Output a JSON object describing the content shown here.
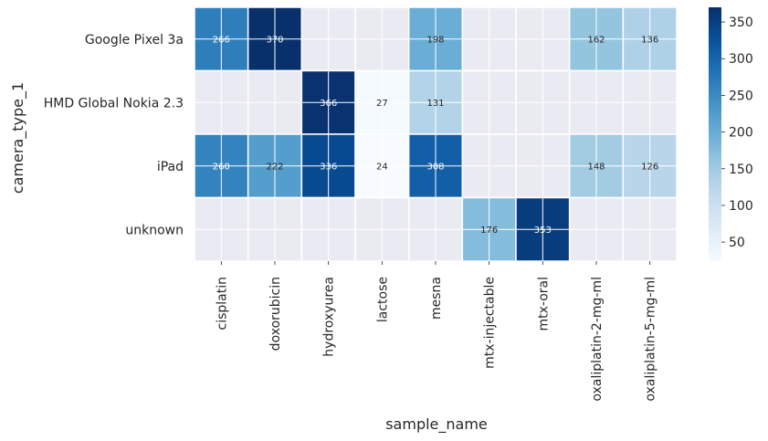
{
  "chart_data": {
    "type": "heatmap",
    "xlabel": "sample_name",
    "ylabel": "camera_type_1",
    "x_categories": [
      "cisplatin",
      "doxorubicin",
      "hydroxyurea",
      "lactose",
      "mesna",
      "mtx-injectable",
      "mtx-oral",
      "oxaliplatin-2-mg-ml",
      "oxaliplatin-5-mg-ml"
    ],
    "y_categories": [
      "Google Pixel 3a",
      "HMD Global Nokia 2.3",
      "iPad",
      "unknown"
    ],
    "values": [
      [
        266,
        370,
        null,
        null,
        198,
        null,
        null,
        162,
        136
      ],
      [
        null,
        null,
        366,
        27,
        131,
        null,
        null,
        null,
        null
      ],
      [
        260,
        222,
        336,
        24,
        308,
        null,
        null,
        148,
        126
      ],
      [
        null,
        null,
        null,
        null,
        null,
        176,
        353,
        null,
        null
      ]
    ],
    "colormap": "Blues",
    "vmin": 24,
    "vmax": 370,
    "colorbar_ticks": [
      50,
      100,
      150,
      200,
      250,
      300,
      350
    ],
    "missing_color": "#eaeaf2",
    "grid": true
  }
}
